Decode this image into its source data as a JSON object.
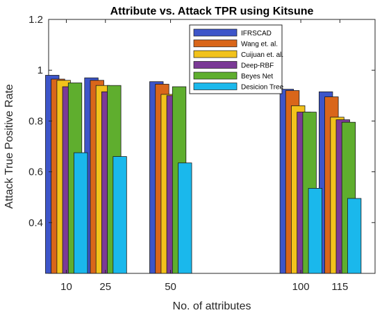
{
  "chart_data": {
    "type": "bar",
    "title": "Attribute vs. Attack TPR using Kitsune",
    "xlabel": "No. of attributes",
    "ylabel": "Attack True Positive Rate",
    "ylim": [
      0.2,
      1.2
    ],
    "yticks": [
      "0.4",
      "0.6",
      "0.8",
      "1",
      "1.2"
    ],
    "categories": [
      "10",
      "25",
      "50",
      "100",
      "115"
    ],
    "x": [
      10,
      25,
      50,
      100,
      115
    ],
    "grid": false,
    "legend_position": "top-center",
    "series": [
      {
        "name": "IFRSCAD",
        "color": "#3d55c9",
        "values": [
          0.98,
          0.97,
          0.955,
          0.925,
          0.915
        ]
      },
      {
        "name": "Wang et. al.",
        "color": "#d9661a",
        "values": [
          0.965,
          0.96,
          0.945,
          0.92,
          0.895
        ]
      },
      {
        "name": "Cuijuan et. al.",
        "color": "#f2c21b",
        "values": [
          0.96,
          0.94,
          0.905,
          0.86,
          0.815
        ]
      },
      {
        "name": "Deep-RBF",
        "color": "#7b3a96",
        "values": [
          0.935,
          0.915,
          0.9,
          0.835,
          0.805
        ]
      },
      {
        "name": "Beyes Net",
        "color": "#5fae2e",
        "values": [
          0.95,
          0.94,
          0.935,
          0.835,
          0.795
        ]
      },
      {
        "name": "Desicion Tree",
        "color": "#1ab8ec",
        "values": [
          0.675,
          0.66,
          0.635,
          0.535,
          0.495
        ]
      }
    ]
  }
}
